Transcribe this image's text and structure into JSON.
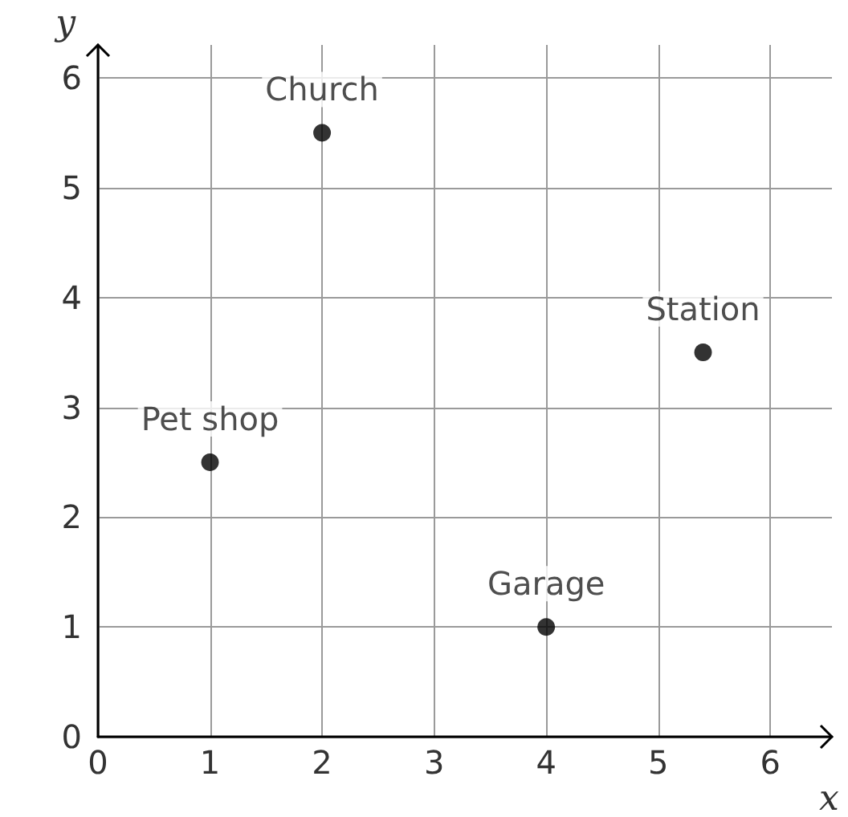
{
  "chart_data": {
    "type": "scatter",
    "xlabel": "x",
    "ylabel": "y",
    "x": [
      1,
      2,
      4,
      5.4
    ],
    "values": [
      2.5,
      5.5,
      1,
      3.5
    ],
    "color": "#000000",
    "marker": "circle",
    "grid": true,
    "xlim": [
      0,
      6.55
    ],
    "ylim": [
      0,
      6.3
    ],
    "xticks": [
      0,
      1,
      2,
      3,
      4,
      5,
      6
    ],
    "yticks": [
      0,
      1,
      2,
      3,
      4,
      5,
      6
    ],
    "annotations": [
      {
        "text": "Pet shop",
        "x": 1,
        "y": 2.5
      },
      {
        "text": "Church",
        "x": 2,
        "y": 5.5
      },
      {
        "text": "Garage",
        "x": 4,
        "y": 1
      },
      {
        "text": "Station",
        "x": 5.4,
        "y": 3.5
      }
    ]
  }
}
